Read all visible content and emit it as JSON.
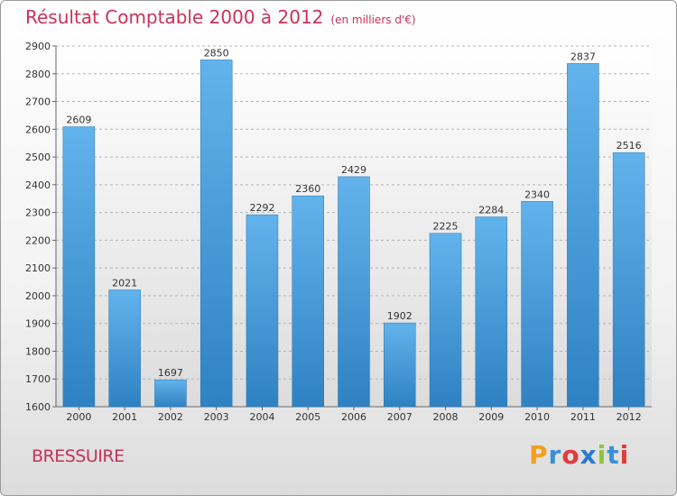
{
  "title": "Résultat Comptable 2000 à 2012",
  "subtitle": "(en milliers d'€)",
  "city": "BRESSUIRE",
  "logo": {
    "letters": [
      "P",
      "r",
      "o",
      "x",
      "i",
      "t",
      "i"
    ],
    "colors": [
      "#f0a020",
      "#3a8fd8",
      "#e23a3a",
      "#2a7ad0",
      "#8ac83a",
      "#3a8fd8",
      "#e23a3a"
    ]
  },
  "colors": {
    "bar_top": "#62b3ec",
    "bar_bottom": "#2f82c2",
    "title": "#c8325a"
  },
  "chart_data": {
    "type": "bar",
    "categories": [
      "2000",
      "2001",
      "2002",
      "2003",
      "2004",
      "2005",
      "2006",
      "2007",
      "2008",
      "2009",
      "2010",
      "2011",
      "2012"
    ],
    "values": [
      2609,
      2021,
      1697,
      2850,
      2292,
      2360,
      2429,
      1902,
      2225,
      2284,
      2340,
      2837,
      2516
    ],
    "yticks": [
      1600,
      1700,
      1800,
      1900,
      2000,
      2100,
      2200,
      2300,
      2400,
      2500,
      2600,
      2700,
      2800,
      2900
    ],
    "ylim": [
      1600,
      2900
    ],
    "grid": true,
    "legend": "none"
  }
}
